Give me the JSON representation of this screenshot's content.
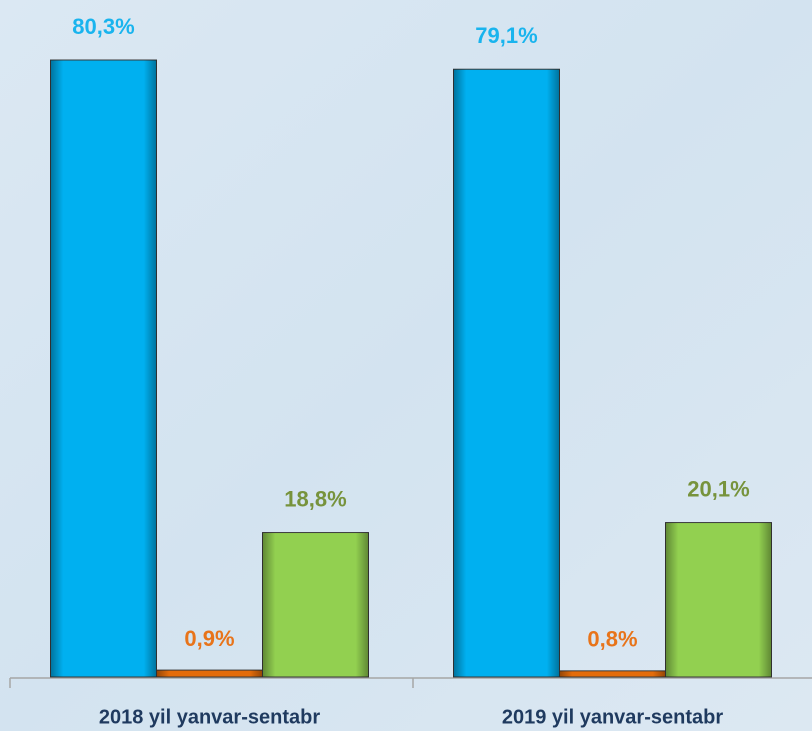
{
  "chart_data": {
    "type": "bar",
    "categories": [
      "2018 yil yanvar-sentabr",
      "2019 yil yanvar-sentabr"
    ],
    "series": [
      {
        "color": "#00b0f0",
        "label_color": "#19b4ee",
        "values": [
          80.3,
          79.1
        ],
        "value_labels": [
          "80,3%",
          "79,1%"
        ]
      },
      {
        "color": "#e46c0a",
        "label_color": "#e8741a",
        "values": [
          0.9,
          0.8
        ],
        "value_labels": [
          "0,9%",
          "0,8%"
        ]
      },
      {
        "color": "#92d050",
        "label_color": "#77933c",
        "values": [
          18.8,
          20.1
        ],
        "value_labels": [
          "18,8%",
          "20,1%"
        ]
      }
    ],
    "grid": false
  }
}
